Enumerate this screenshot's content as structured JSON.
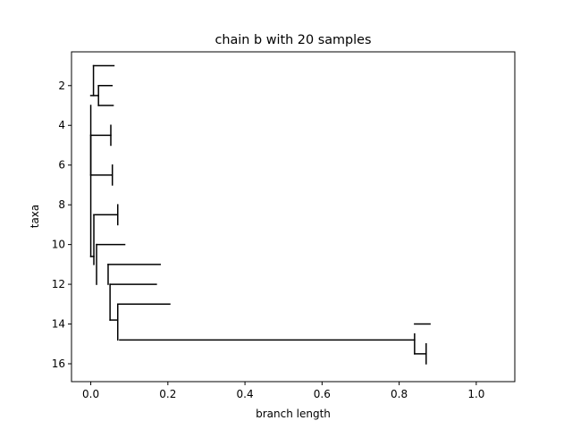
{
  "chart_data": {
    "type": "dendrogram",
    "title": "chain b with 20 samples",
    "xlabel": "branch length",
    "ylabel": "taxa",
    "xlim": [
      -0.05,
      1.1
    ],
    "ylim": [
      16.9,
      0.3
    ],
    "y_inverted": true,
    "grid": false,
    "xticks": [
      0.0,
      0.2,
      0.4,
      0.6,
      0.8,
      1.0
    ],
    "xtick_labels": [
      "0.0",
      "0.2",
      "0.4",
      "0.6",
      "0.8",
      "1.0"
    ],
    "yticks": [
      2,
      4,
      6,
      8,
      10,
      12,
      14,
      16
    ],
    "ytick_labels": [
      "2",
      "4",
      "6",
      "8",
      "10",
      "12",
      "14",
      "16"
    ],
    "line_color": "#000000",
    "vertical_segments": [
      {
        "x": 0.0,
        "y0": 3.0,
        "y1": 10.6
      },
      {
        "x": 0.007,
        "y0": 1.0,
        "y1": 2.5
      },
      {
        "x": 0.02,
        "y0": 2.0,
        "y1": 3.0
      },
      {
        "x": 0.0,
        "y0": 4.5,
        "y1": 6.5
      },
      {
        "x": 0.052,
        "y0": 4.0,
        "y1": 5.0
      },
      {
        "x": 0.056,
        "y0": 6.0,
        "y1": 7.0
      },
      {
        "x": 0.008,
        "y0": 8.5,
        "y1": 11.0
      },
      {
        "x": 0.07,
        "y0": 8.0,
        "y1": 9.0
      },
      {
        "x": 0.015,
        "y0": 10.0,
        "y1": 12.0
      },
      {
        "x": 0.045,
        "y0": 11.0,
        "y1": 12.0
      },
      {
        "x": 0.05,
        "y0": 12.0,
        "y1": 13.8
      },
      {
        "x": 0.07,
        "y0": 13.0,
        "y1": 14.8
      },
      {
        "x": 0.84,
        "y0": 14.5,
        "y1": 15.5
      },
      {
        "x": 0.87,
        "y0": 15.0,
        "y1": 16.0
      }
    ],
    "horizontal_segments": [
      {
        "y": 1.0,
        "x0": 0.007,
        "x1": 0.06
      },
      {
        "y": 2.0,
        "x0": 0.02,
        "x1": 0.055
      },
      {
        "y": 3.0,
        "x0": 0.02,
        "x1": 0.058
      },
      {
        "y": 2.5,
        "x0": 0.0,
        "x1": 0.02
      },
      {
        "y": 4.5,
        "x0": 0.0,
        "x1": 0.052
      },
      {
        "y": 6.5,
        "x0": 0.0,
        "x1": 0.056
      },
      {
        "y": 8.5,
        "x0": 0.008,
        "x1": 0.07
      },
      {
        "y": 10.0,
        "x0": 0.015,
        "x1": 0.088
      },
      {
        "y": 11.0,
        "x0": 0.045,
        "x1": 0.18
      },
      {
        "y": 12.0,
        "x0": 0.05,
        "x1": 0.17
      },
      {
        "y": 13.0,
        "x0": 0.07,
        "x1": 0.205
      },
      {
        "y": 13.8,
        "x0": 0.05,
        "x1": 0.07
      },
      {
        "y": 14.8,
        "x0": 0.075,
        "x1": 0.84
      },
      {
        "y": 14.0,
        "x0": 0.84,
        "x1": 0.88
      },
      {
        "y": 15.5,
        "x0": 0.84,
        "x1": 0.87
      },
      {
        "y": 10.6,
        "x0": 0.0,
        "x1": 0.008
      }
    ]
  }
}
